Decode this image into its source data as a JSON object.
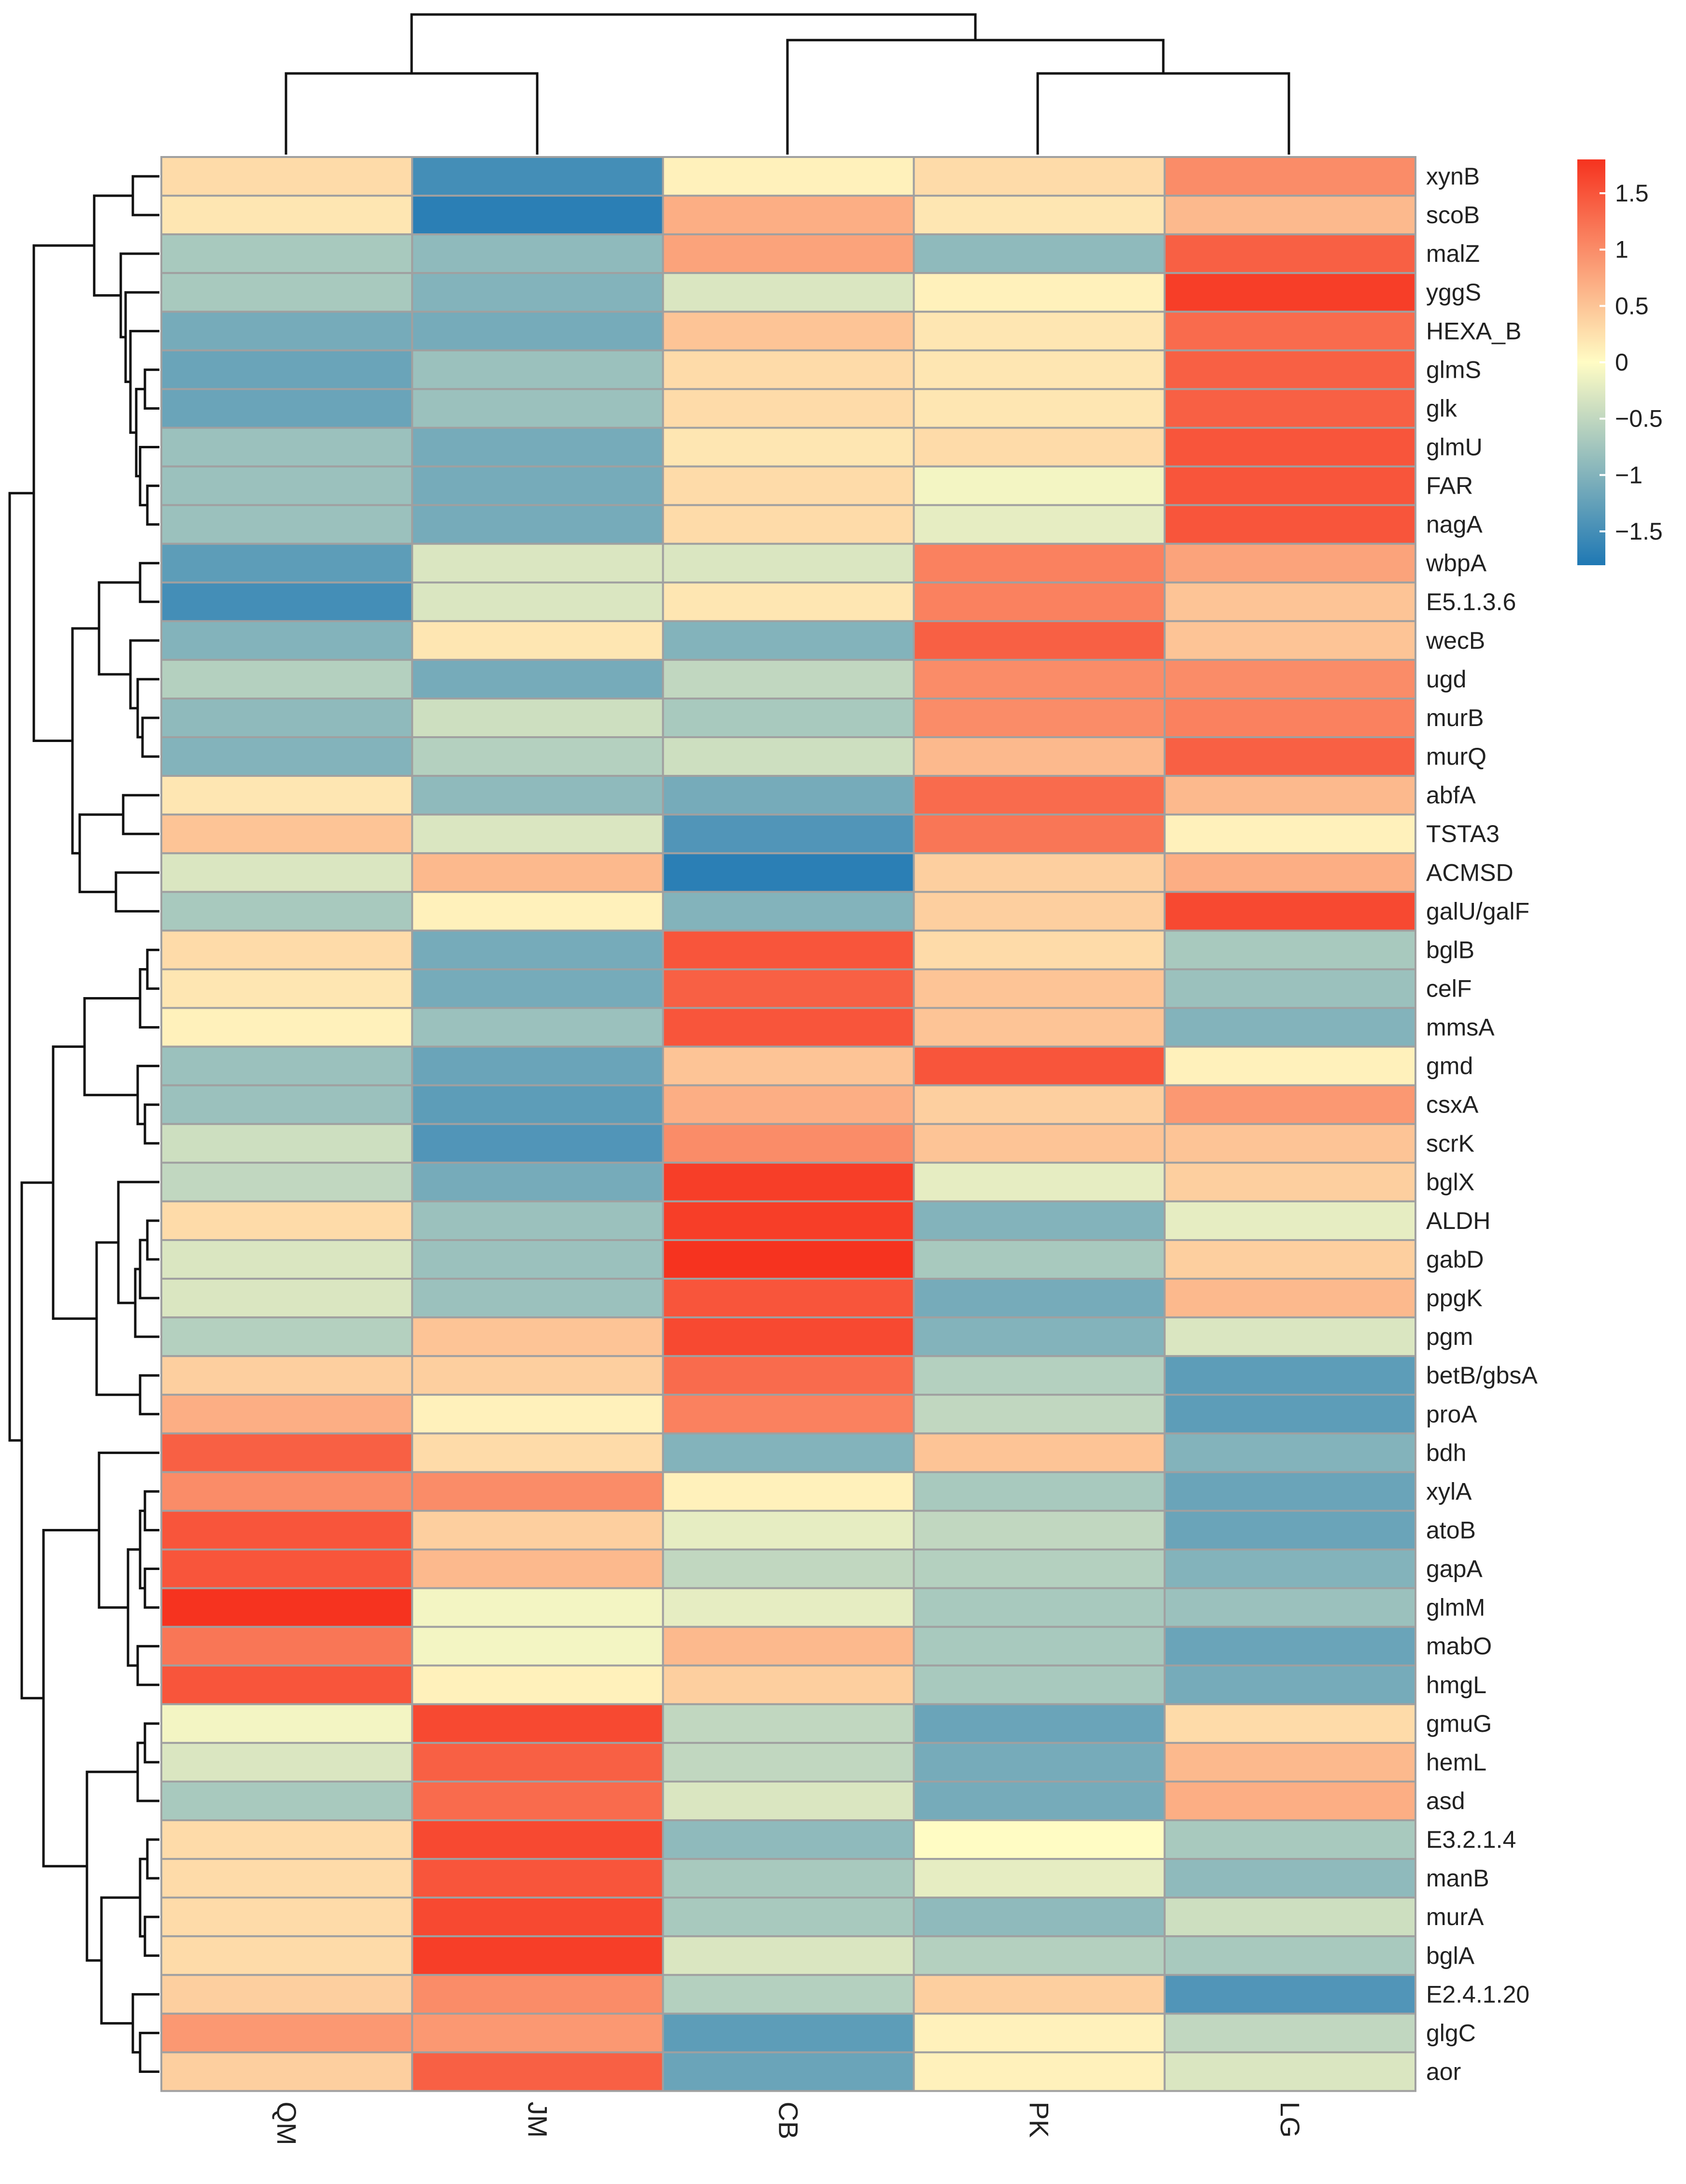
{
  "chart_data": {
    "type": "heatmap",
    "title": "",
    "columns": [
      "QM",
      "JM",
      "CB",
      "PK",
      "LG"
    ],
    "rows": [
      "xynB",
      "scoB",
      "malZ",
      "yggS",
      "HEXA_B",
      "glmS",
      "glk",
      "glmU",
      "FAR",
      "nagA",
      "wbpA",
      "E5.1.3.6",
      "wecB",
      "ugd",
      "murB",
      "murQ",
      "abfA",
      "TSTA3",
      "ACMSD",
      "galU/galF",
      "bglB",
      "celF",
      "mmsA",
      "gmd",
      "csxA",
      "scrK",
      "bglX",
      "ALDH",
      "gabD",
      "ppgK",
      "pgm",
      "betB/gbsA",
      "proA",
      "bdh",
      "xylA",
      "atoB",
      "gapA",
      "glmM",
      "mabO",
      "hmgL",
      "gmuG",
      "hemL",
      "asd",
      "E3.2.1.4",
      "manB",
      "murA",
      "bglA",
      "E2.4.1.20",
      "glgC",
      "aor"
    ],
    "values": [
      [
        0.3,
        -1.5,
        0.1,
        0.3,
        1.0
      ],
      [
        0.2,
        -1.7,
        0.7,
        0.2,
        0.6
      ],
      [
        -0.7,
        -0.9,
        0.8,
        -0.9,
        1.4
      ],
      [
        -0.7,
        -1.0,
        -0.3,
        0.1,
        1.7
      ],
      [
        -1.1,
        -1.1,
        0.5,
        0.2,
        1.3
      ],
      [
        -1.2,
        -0.8,
        0.3,
        0.2,
        1.4
      ],
      [
        -1.2,
        -0.8,
        0.3,
        0.2,
        1.4
      ],
      [
        -0.8,
        -1.1,
        0.2,
        0.3,
        1.5
      ],
      [
        -0.8,
        -1.1,
        0.3,
        -0.1,
        1.5
      ],
      [
        -0.8,
        -1.1,
        0.3,
        -0.2,
        1.5
      ],
      [
        -1.3,
        -0.3,
        -0.3,
        1.1,
        0.8
      ],
      [
        -1.5,
        -0.3,
        0.2,
        1.1,
        0.5
      ],
      [
        -1.0,
        0.2,
        -1.0,
        1.4,
        0.5
      ],
      [
        -0.6,
        -1.1,
        -0.5,
        1.0,
        1.0
      ],
      [
        -0.9,
        -0.4,
        -0.7,
        1.0,
        1.1
      ],
      [
        -1.0,
        -0.6,
        -0.4,
        0.6,
        1.4
      ],
      [
        0.2,
        -0.9,
        -1.1,
        1.3,
        0.6
      ],
      [
        0.5,
        -0.3,
        -1.4,
        1.2,
        0.1
      ],
      [
        -0.3,
        0.6,
        -1.7,
        0.4,
        0.7
      ],
      [
        -0.7,
        0.1,
        -1.0,
        0.4,
        1.6
      ],
      [
        0.3,
        -1.1,
        1.5,
        0.3,
        -0.7
      ],
      [
        0.2,
        -1.1,
        1.4,
        0.5,
        -0.8
      ],
      [
        0.1,
        -0.8,
        1.5,
        0.5,
        -1.0
      ],
      [
        -0.8,
        -1.2,
        0.5,
        1.5,
        0.1
      ],
      [
        -0.8,
        -1.3,
        0.7,
        0.4,
        0.9
      ],
      [
        -0.4,
        -1.4,
        1.0,
        0.5,
        0.5
      ],
      [
        -0.5,
        -1.1,
        1.7,
        -0.2,
        0.4
      ],
      [
        0.3,
        -0.8,
        1.7,
        -1.0,
        -0.2
      ],
      [
        -0.3,
        -0.8,
        1.8,
        -0.7,
        0.4
      ],
      [
        -0.3,
        -0.8,
        1.5,
        -1.1,
        0.6
      ],
      [
        -0.6,
        0.5,
        1.6,
        -1.0,
        -0.3
      ],
      [
        0.4,
        0.4,
        1.3,
        -0.6,
        -1.3
      ],
      [
        0.7,
        0.1,
        1.1,
        -0.5,
        -1.3
      ],
      [
        1.4,
        0.3,
        -1.0,
        0.5,
        -1.0
      ],
      [
        1.0,
        1.0,
        0.1,
        -0.7,
        -1.2
      ],
      [
        1.5,
        0.4,
        -0.2,
        -0.5,
        -1.2
      ],
      [
        1.5,
        0.6,
        -0.5,
        -0.6,
        -1.0
      ],
      [
        1.8,
        -0.1,
        -0.2,
        -0.7,
        -0.8
      ],
      [
        1.2,
        -0.1,
        0.6,
        -0.7,
        -1.2
      ],
      [
        1.5,
        0.1,
        0.4,
        -0.7,
        -1.1
      ],
      [
        -0.1,
        1.6,
        -0.5,
        -1.2,
        0.3
      ],
      [
        -0.3,
        1.4,
        -0.5,
        -1.1,
        0.6
      ],
      [
        -0.7,
        1.3,
        -0.3,
        -1.1,
        0.7
      ],
      [
        0.3,
        1.6,
        -0.9,
        0.0,
        -0.7
      ],
      [
        0.3,
        1.5,
        -0.7,
        -0.2,
        -0.9
      ],
      [
        0.3,
        1.6,
        -0.7,
        -0.9,
        -0.4
      ],
      [
        0.3,
        1.7,
        -0.3,
        -0.6,
        -0.7
      ],
      [
        0.4,
        1.0,
        -0.6,
        0.4,
        -1.4
      ],
      [
        0.9,
        0.9,
        -1.3,
        0.1,
        -0.5
      ],
      [
        0.4,
        1.4,
        -1.2,
        0.1,
        -0.3
      ]
    ],
    "color_scale": {
      "range": [
        -1.8,
        1.8
      ],
      "low_color": "#1f78b4",
      "mid_color": "#fffcc4",
      "high_color": "#f6331f",
      "ticks": [
        1.5,
        1,
        0.5,
        0,
        -0.5,
        -1,
        -1.5
      ],
      "tick_labels": [
        "1.5",
        "1",
        "0.5",
        "0",
        "−0.5",
        "−1",
        "−1.5"
      ]
    },
    "row_dendrogram": true,
    "column_dendrogram": true,
    "legend_position": "top-right"
  }
}
